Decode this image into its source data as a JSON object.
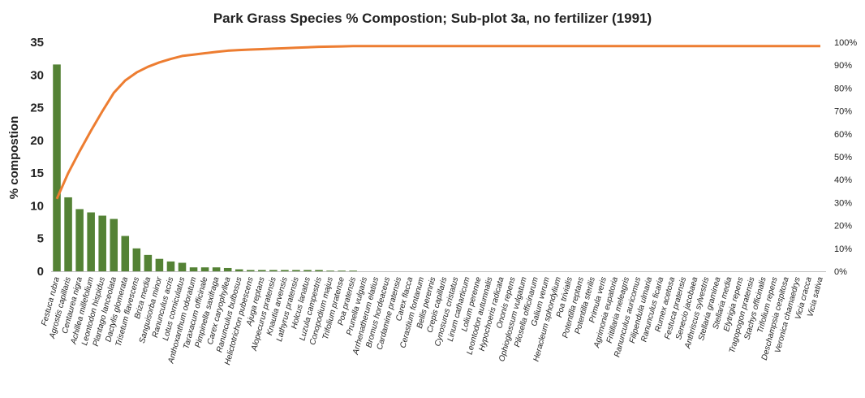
{
  "chart_data": {
    "type": "bar",
    "title": "Park Grass Species % Compostion; Sub-plot 3a, no fertilizer (1991)",
    "xlabel": "",
    "ylabel": "% compostion",
    "ylim": [
      0,
      35
    ],
    "y_ticks": [
      "0",
      "5",
      "10",
      "15",
      "20",
      "25",
      "30",
      "35"
    ],
    "y2lim": [
      0,
      100
    ],
    "y2_ticks": [
      "0%",
      "10%",
      "20%",
      "30%",
      "40%",
      "50%",
      "60%",
      "70%",
      "80%",
      "90%",
      "100%"
    ],
    "grid": false,
    "legend": "none",
    "bar_color": "#548235",
    "line_color": "#ED7D31",
    "categories": [
      "Festuca rubra",
      "Agrostis capillaris",
      "Centaurea nigra",
      "Achillea millefolium",
      "Leontodon hispidus",
      "Plantago lanceolata",
      "Dactylis glomerata",
      "Trisetum flavescens",
      "Briza media",
      "Sanguisorba minor",
      "Ranunculus acris",
      "Lotus corniculatus",
      "Anthoxanthum odoratum",
      "Taraxacum officinale",
      "Pimpinella saxifraga",
      "Carex caryophyllea",
      "Ranunculus bulbosus",
      "Helictotrichon pubescens",
      "Ajuga reptans",
      "Alopecurus pratensis",
      "Knautia arvensis",
      "Lathyrus pratensis",
      "Holcus lanatus",
      "Luzula campestris",
      "Conopodium majus",
      "Trifolium pratense",
      "Poa pratensis",
      "Prunella vulgaris",
      "Arrhenatherum elatius",
      "Bromus hordeaceus",
      "Cardamine pratensis",
      "Carex flacca",
      "Cerastium fontanum",
      "Bellis perennis",
      "Crepis capillaris",
      "Cynosurus cristatus",
      "Linum catharticum",
      "Lolium perenne",
      "Leontodon autumnalis",
      "Hypochoeris radicata",
      "Ononis repens",
      "Ophioglossum vulgatum",
      "Pilosella officinarum",
      "Galium verum",
      "Heracleum sphondylium",
      "Poa trivialis",
      "Potentilla reptans",
      "Potentilla sterilis",
      "Primula veris",
      "Agrimonia eupatoria",
      "Fritillaria meleagris",
      "Ranunculus auricomus",
      "Filipendula ulmaria",
      "Ranunculus ficaria",
      "Rumex acetosa",
      "Festuca pratensis",
      "Senecio jacobaea",
      "Anthriscus sylvestris",
      "Stellaria graminea",
      "Stellaria media",
      "Elytrigia repens",
      "Tragopogon pratensis",
      "Stachys officinalis",
      "Trifolium repens",
      "Deschampsia cespitosa",
      "Veronica chamaedrys",
      "Vicia cracca",
      "Vicia sativa"
    ],
    "series": [
      {
        "values": [
          31.6,
          11.3,
          9.5,
          9.0,
          8.5,
          8.0,
          5.4,
          3.5,
          2.5,
          1.9,
          1.5,
          1.3,
          0.6,
          0.6,
          0.6,
          0.5,
          0.3,
          0.2,
          0.2,
          0.2,
          0.2,
          0.2,
          0.2,
          0.2,
          0.1,
          0.1,
          0.1,
          0,
          0,
          0,
          0,
          0,
          0,
          0,
          0,
          0,
          0,
          0,
          0,
          0,
          0,
          0,
          0,
          0,
          0,
          0,
          0,
          0,
          0,
          0,
          0,
          0,
          0,
          0,
          0,
          0,
          0,
          0,
          0,
          0,
          0,
          0,
          0,
          0,
          0,
          0,
          0,
          0
        ]
      },
      {
        "axis": "secondary",
        "values": [
          31.6,
          42.9,
          52.4,
          61.4,
          69.9,
          77.9,
          83.3,
          86.8,
          89.3,
          91.2,
          92.7,
          94.0,
          94.6,
          95.2,
          95.8,
          96.3,
          96.6,
          96.8,
          97.0,
          97.2,
          97.4,
          97.6,
          97.8,
          98.0,
          98.1,
          98.2,
          98.3,
          98.3,
          98.3,
          98.3,
          98.3,
          98.3,
          98.3,
          98.3,
          98.3,
          98.3,
          98.3,
          98.3,
          98.3,
          98.3,
          98.3,
          98.3,
          98.3,
          98.3,
          98.3,
          98.3,
          98.3,
          98.3,
          98.3,
          98.3,
          98.3,
          98.3,
          98.3,
          98.3,
          98.3,
          98.3,
          98.3,
          98.3,
          98.3,
          98.3,
          98.3,
          98.3,
          98.3,
          98.3,
          98.3,
          98.3,
          98.3,
          98.3
        ]
      }
    ]
  }
}
